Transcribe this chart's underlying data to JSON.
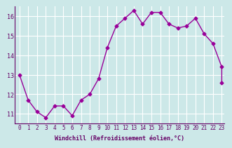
{
  "x": [
    0,
    1,
    2,
    3,
    4,
    5,
    6,
    7,
    8,
    9,
    10,
    11,
    12,
    13,
    14,
    15,
    16,
    17,
    18,
    19,
    20,
    21,
    22,
    23
  ],
  "y": [
    13.0,
    11.7,
    11.1,
    10.8,
    11.4,
    11.4,
    10.9,
    11.7,
    12.0,
    12.8,
    14.4,
    15.5,
    15.9,
    16.3,
    15.6,
    16.2,
    16.2,
    15.6,
    15.4,
    15.5,
    15.9,
    15.1,
    14.6,
    13.4
  ],
  "y_end": 12.6,
  "xlabel": "Windchill (Refroidissement éolien,°C)",
  "xlim": [
    0,
    23
  ],
  "ylim": [
    10.5,
    16.5
  ],
  "yticks": [
    11,
    12,
    13,
    14,
    15,
    16
  ],
  "xticks": [
    0,
    1,
    2,
    3,
    4,
    5,
    6,
    7,
    8,
    9,
    10,
    11,
    12,
    13,
    14,
    15,
    16,
    17,
    18,
    19,
    20,
    21,
    22,
    23
  ],
  "line_color": "#990099",
  "marker_color": "#990099",
  "bg_color": "#cce8e8",
  "grid_color": "#ffffff",
  "text_color": "#660066",
  "font": "monospace"
}
